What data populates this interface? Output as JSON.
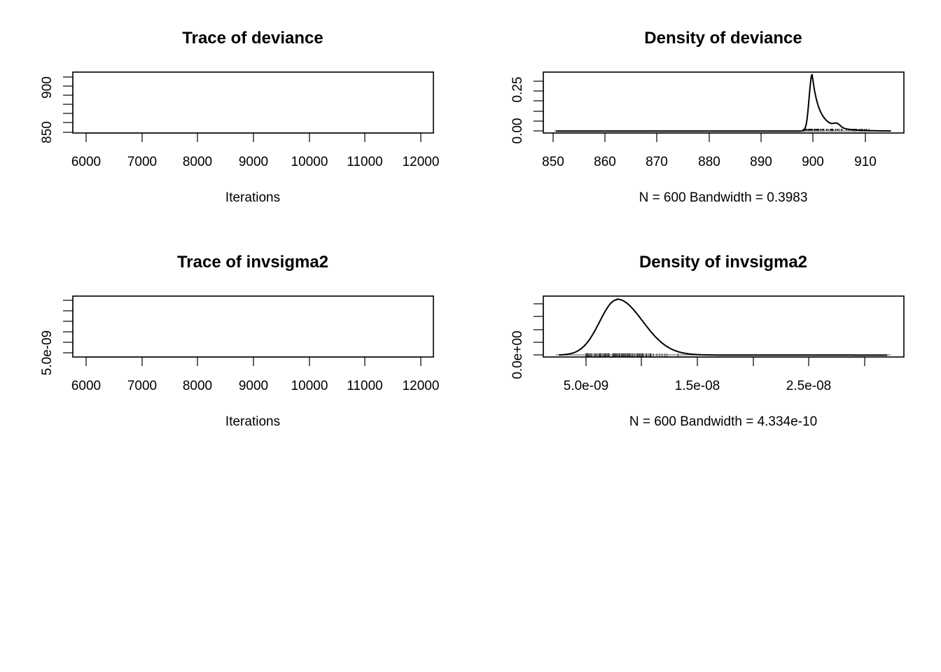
{
  "colors": {
    "chain1": "#000000",
    "chain2": "#DF536B",
    "chain3": "#61D04F",
    "frame": "#000000"
  },
  "chart_data": [
    {
      "type": "line",
      "title": "Trace of deviance",
      "xlabel": "Iterations",
      "xticks": [
        "6000",
        "7000",
        "8000",
        "9000",
        "10000",
        "11000",
        "12000"
      ],
      "yticks_labeled": [
        "850",
        "900"
      ],
      "xlim": [
        5960,
        12240
      ],
      "ylim": [
        849,
        909
      ],
      "baseline": 900,
      "start_value": 850,
      "series": [
        {
          "line_style": "solid",
          "color": "#000000",
          "seed": 11,
          "noise": 2.2,
          "spike_rate": 0.06,
          "spike_max": 4.5
        },
        {
          "line_style": "dashed",
          "color": "#DF536B",
          "seed": 23,
          "noise": 2.2,
          "spike_rate": 0.06,
          "spike_max": 4.5
        },
        {
          "line_style": "dotted",
          "color": "#61D04F",
          "seed": 37,
          "noise": 2.0,
          "spike_rate": 0.05,
          "spike_max": 4.0
        }
      ]
    },
    {
      "type": "area",
      "title": "Density of deviance",
      "xlabel": "N = 600   Bandwidth = 0.3983",
      "xticks": [
        "850",
        "860",
        "870",
        "880",
        "890",
        "900",
        "910"
      ],
      "yticks_labeled": [
        "0.00",
        "0.25"
      ],
      "xlim": [
        848.6,
        917
      ],
      "ylim": [
        -0.01,
        0.3
      ],
      "peak_x": 899.6,
      "peak_y": 0.29,
      "rug_range": [
        897.9,
        910.5
      ]
    },
    {
      "type": "line",
      "title": "Trace of invsigma2",
      "xlabel": "Iterations",
      "xticks": [
        "6000",
        "7000",
        "8000",
        "9000",
        "10000",
        "11000",
        "12000"
      ],
      "yticks_labeled": [
        "5.0e-09"
      ],
      "xlim": [
        5960,
        12240
      ],
      "ylim": [
        4.2e-09,
        1.4e-08
      ],
      "baseline": 6.2e-09,
      "start_value": 1.3e-08,
      "series": [
        {
          "line_style": "solid",
          "color": "#000000",
          "seed": 41,
          "noise": 5.5e-10,
          "spike_rate": 0.12,
          "spike_max": 1.8e-09
        },
        {
          "line_style": "dashed",
          "color": "#DF536B",
          "seed": 53,
          "noise": 5.5e-10,
          "spike_rate": 0.12,
          "spike_max": 1.8e-09
        },
        {
          "line_style": "dotted",
          "color": "#61D04F",
          "seed": 67,
          "noise": 5e-10,
          "spike_rate": 0.1,
          "spike_max": 2e-09
        }
      ]
    },
    {
      "type": "area",
      "title": "Density of invsigma2",
      "xlabel": "N = 600   Bandwidth = 4.334e-10",
      "xticks": [
        "5.0e-09",
        "1.5e-08",
        "2.5e-08"
      ],
      "yticks_labeled": [
        "0.0e+00"
      ],
      "xlim": [
        1.2e-09,
        3.35e-08
      ],
      "ylim": [
        -5000000.0,
        160000000.0
      ],
      "peak_x": 7.8e-09,
      "peak_y": 150000000.0,
      "rug_range": [
        5e-09,
        1.45e-08
      ]
    }
  ]
}
